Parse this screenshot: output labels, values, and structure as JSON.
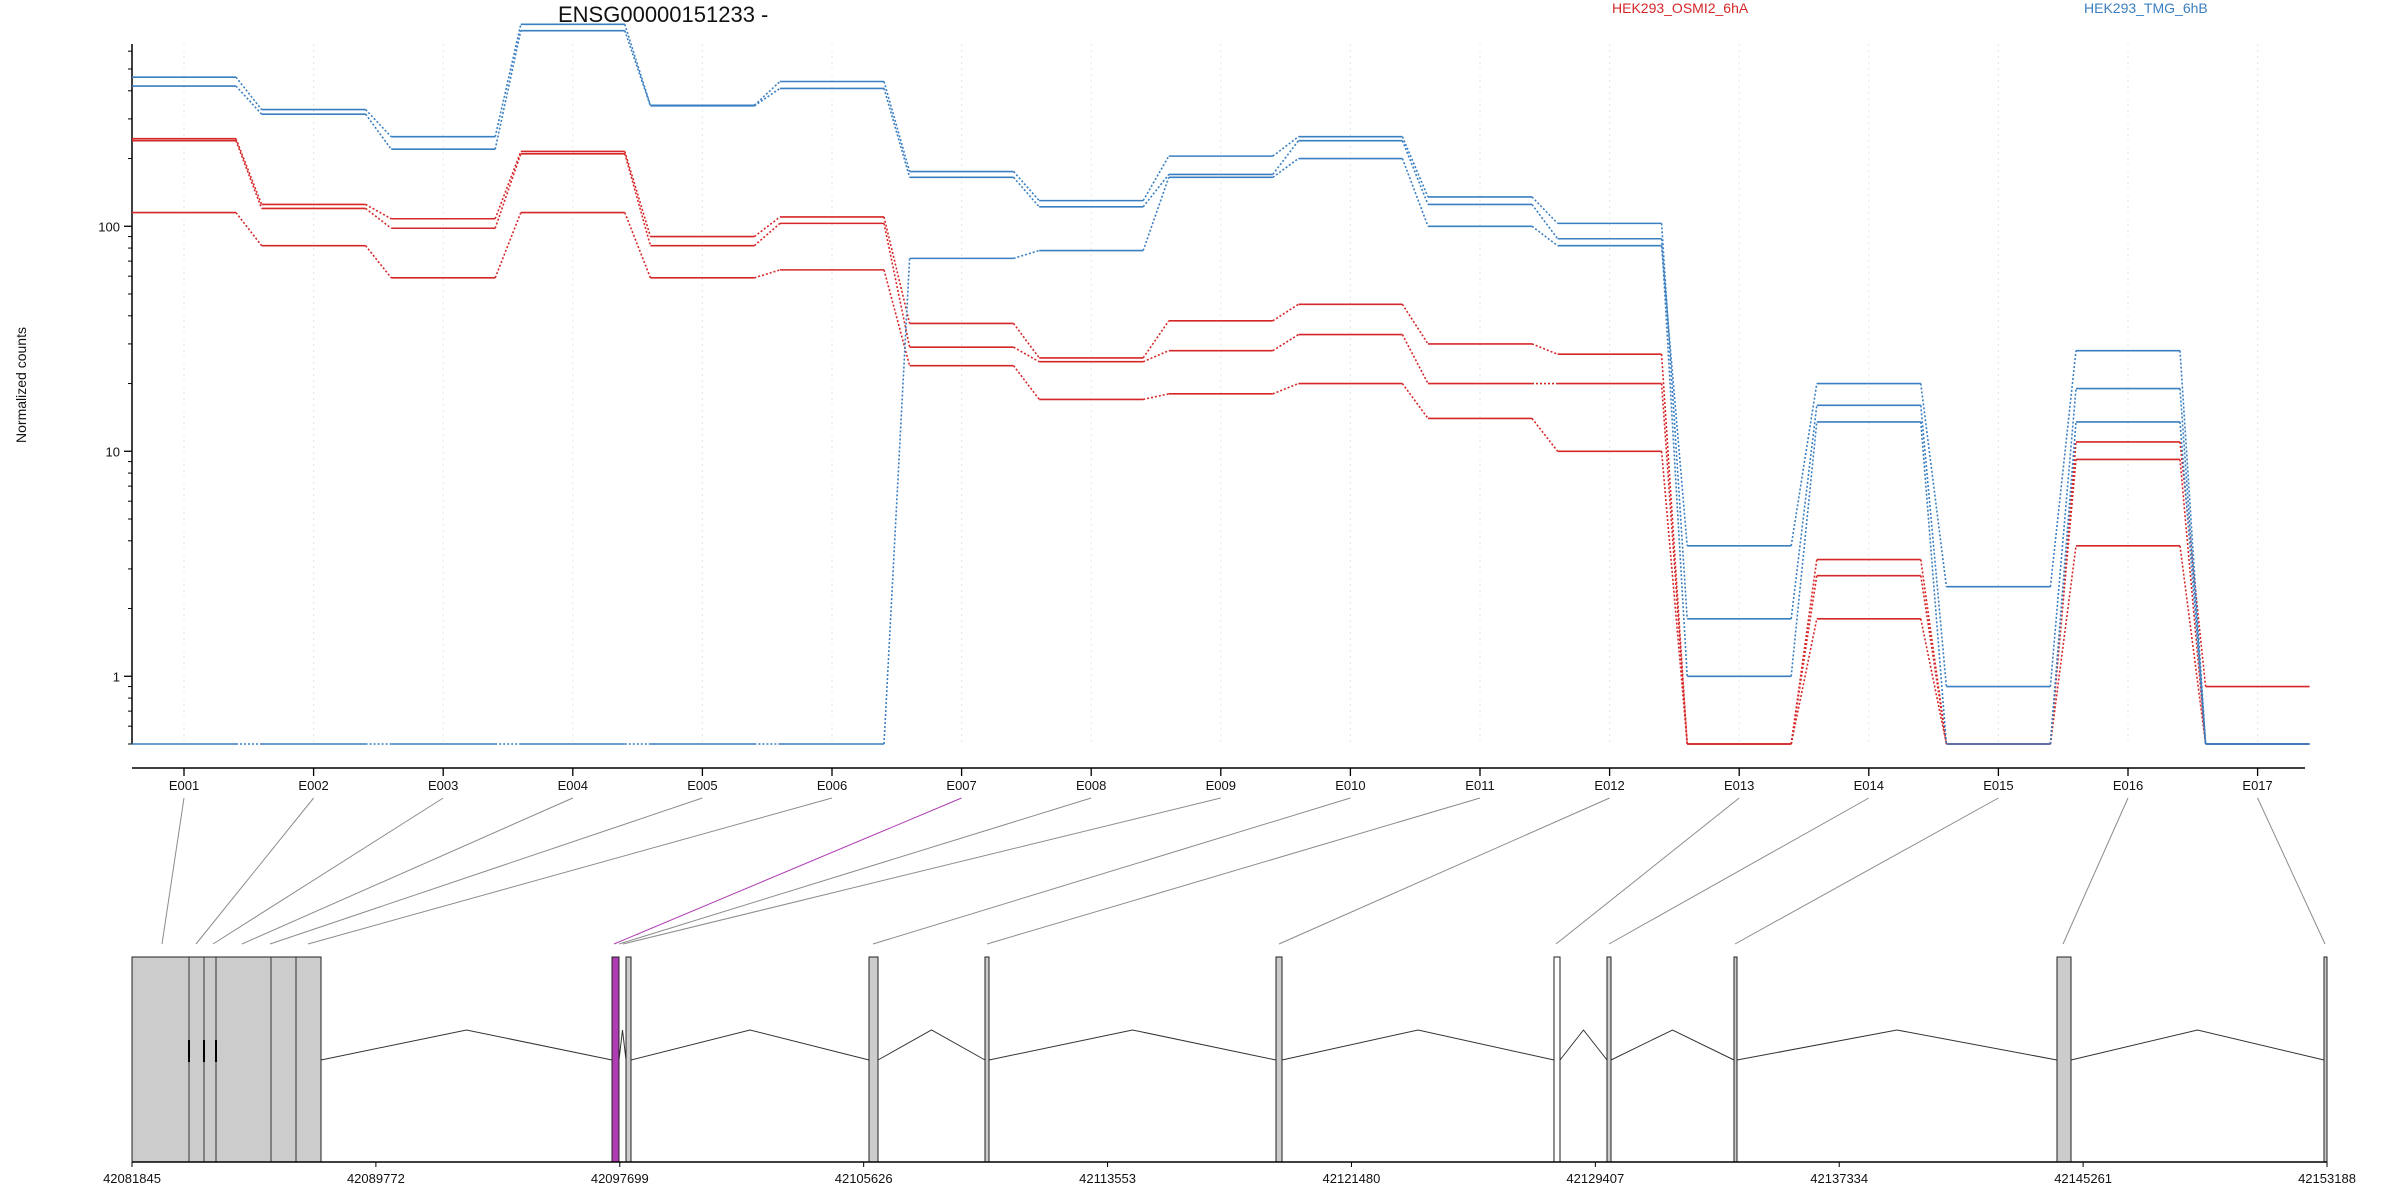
{
  "chart_data": [
    {
      "type": "line",
      "title": "ENSG00000151233 -",
      "ylabel": "Normalized counts",
      "xlabel": "",
      "yscale": "log",
      "ylim": [
        0.5,
        1000
      ],
      "yticks": [
        1,
        10,
        100
      ],
      "ytick_labels": [
        "1",
        "10",
        "100"
      ],
      "grid": "vertical light dotted",
      "legend_placement": "top",
      "categories": [
        "E001",
        "E002",
        "E003",
        "E004",
        "E005",
        "E006",
        "E007",
        "E008",
        "E009",
        "E010",
        "E011",
        "E012",
        "E013",
        "E014",
        "E015",
        "E016",
        "E017"
      ],
      "groups": [
        {
          "name": "HEK293_OSMI2_6hA",
          "color": "#d62728"
        },
        {
          "name": "HEK293_TMG_6hB",
          "color": "#3a7fc1"
        }
      ],
      "series": [
        {
          "group": "HEK293_OSMI2_6hA",
          "values": [
            240,
            120,
            98,
            210,
            82,
            103,
            29,
            25,
            28,
            33,
            20,
            20,
            0.5,
            2.8,
            0.5,
            9.2,
            0.5
          ]
        },
        {
          "group": "HEK293_OSMI2_6hA",
          "values": [
            245,
            125,
            108,
            215,
            90,
            110,
            37,
            26,
            38,
            45,
            30,
            27,
            0.5,
            3.3,
            0.5,
            11,
            0.9
          ]
        },
        {
          "group": "HEK293_OSMI2_6hA",
          "values": [
            115,
            82,
            59,
            115,
            59,
            64,
            24,
            17,
            18,
            20,
            14,
            10,
            0.5,
            1.8,
            0.5,
            3.8,
            0.5
          ]
        },
        {
          "group": "HEK293_TMG_6hB",
          "values": [
            460,
            330,
            250,
            790,
            345,
            440,
            175,
            130,
            205,
            250,
            135,
            103,
            1.8,
            16,
            0.9,
            19,
            0.5
          ]
        },
        {
          "group": "HEK293_TMG_6hB",
          "values": [
            420,
            315,
            220,
            740,
            343,
            410,
            165,
            122,
            170,
            240,
            125,
            88,
            1,
            13.5,
            0.5,
            13.5,
            0.5
          ]
        },
        {
          "group": "HEK293_TMG_6hB",
          "values": [
            0.5,
            0.5,
            0.5,
            0.5,
            0.5,
            0.5,
            72,
            78,
            165,
            200,
            100,
            82,
            3.8,
            20,
            2.5,
            28,
            0.5
          ]
        }
      ]
    },
    {
      "type": "gene_model",
      "xlim": [
        42081845,
        42153188
      ],
      "xticks": [
        42081845,
        42089772,
        42097699,
        42105626,
        42113553,
        42121480,
        42129407,
        42137334,
        42145261,
        42153188
      ],
      "xtick_labels": [
        "42081845",
        "42089772",
        "42097699",
        "42105626",
        "42113553",
        "42121480",
        "42129407",
        "42137334",
        "42145261",
        "42153188"
      ],
      "highlighted_exon": "E007",
      "highlight_color": "#b03cb4",
      "exon_fill": "#cccccc"
    }
  ]
}
